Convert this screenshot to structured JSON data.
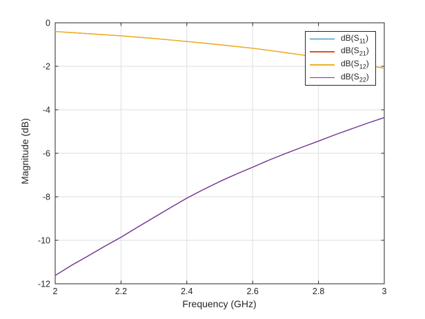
{
  "figure": {
    "background": "#ffffff",
    "axes_color": "#262626",
    "grid_color": "#dedede",
    "tick_label_color": "#262626"
  },
  "legend": {
    "position": "top-right-inside",
    "items": [
      {
        "prefix": "dB(S",
        "sub": "11",
        "suffix": ")"
      },
      {
        "prefix": "dB(S",
        "sub": "21",
        "suffix": ")"
      },
      {
        "prefix": "dB(S",
        "sub": "12",
        "suffix": ")"
      },
      {
        "prefix": "dB(S",
        "sub": "22",
        "suffix": ")"
      }
    ]
  },
  "chart_data": {
    "type": "line",
    "title": "",
    "xlabel": "Frequency (GHz)",
    "ylabel": "Magnitude (dB)",
    "xlim": [
      2,
      3
    ],
    "ylim": [
      -12,
      0
    ],
    "grid": true,
    "legend_position": "top-right-inside",
    "xticks": {
      "values": [
        2,
        2.2,
        2.4,
        2.6,
        2.8,
        3
      ],
      "labels": [
        "2",
        "2.2",
        "2.4",
        "2.6",
        "2.8",
        "3"
      ]
    },
    "yticks": {
      "values": [
        0,
        -2,
        -4,
        -6,
        -8,
        -10,
        -12
      ],
      "labels": [
        "0",
        "-2",
        "-4",
        "-6",
        "-8",
        "-10",
        "-12"
      ]
    },
    "x": [
      2,
      2.05,
      2.1,
      2.15,
      2.2,
      2.25,
      2.3,
      2.35,
      2.4,
      2.45,
      2.5,
      2.55,
      2.6,
      2.65,
      2.7,
      2.75,
      2.8,
      2.85,
      2.9,
      2.95,
      3
    ],
    "series": [
      {
        "id": "s11",
        "name": "dB(S11)",
        "color": "#0072BD",
        "values": [
          -11.62,
          -11.15,
          -10.72,
          -10.28,
          -9.86,
          -9.4,
          -8.95,
          -8.5,
          -8.06,
          -7.67,
          -7.3,
          -6.96,
          -6.64,
          -6.31,
          -6.01,
          -5.72,
          -5.44,
          -5.15,
          -4.88,
          -4.61,
          -4.36
        ]
      },
      {
        "id": "s21",
        "name": "dB(S21)",
        "color": "#D95319",
        "values": [
          -0.4,
          -0.45,
          -0.5,
          -0.55,
          -0.6,
          -0.66,
          -0.72,
          -0.79,
          -0.86,
          -0.93,
          -1.01,
          -1.09,
          -1.17,
          -1.27,
          -1.37,
          -1.48,
          -1.6,
          -1.72,
          -1.84,
          -1.96,
          -2.09
        ]
      },
      {
        "id": "s12",
        "name": "dB(S12)",
        "color": "#EDB120",
        "values": [
          -0.4,
          -0.45,
          -0.5,
          -0.55,
          -0.6,
          -0.66,
          -0.72,
          -0.79,
          -0.86,
          -0.93,
          -1.01,
          -1.09,
          -1.17,
          -1.27,
          -1.37,
          -1.48,
          -1.6,
          -1.72,
          -1.84,
          -1.96,
          -2.09
        ]
      },
      {
        "id": "s22",
        "name": "dB(S22)",
        "color": "#7E2F8E",
        "values": [
          -11.62,
          -11.15,
          -10.72,
          -10.28,
          -9.86,
          -9.4,
          -8.95,
          -8.5,
          -8.06,
          -7.67,
          -7.3,
          -6.96,
          -6.64,
          -6.31,
          -6.01,
          -5.72,
          -5.44,
          -5.15,
          -4.88,
          -4.61,
          -4.36
        ]
      }
    ]
  }
}
